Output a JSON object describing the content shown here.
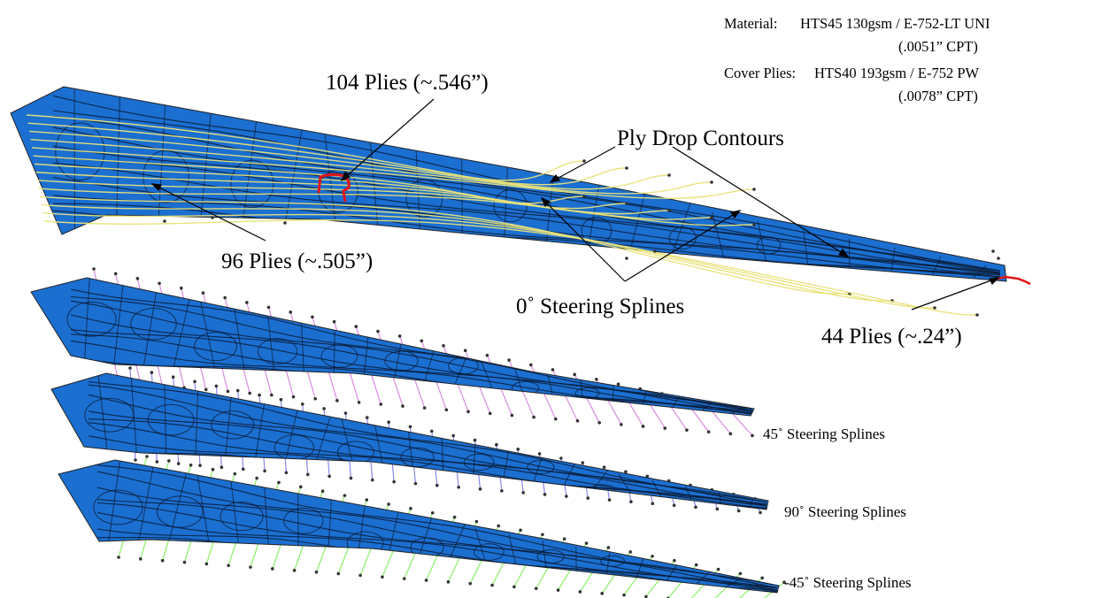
{
  "material": {
    "line1_label": "Material:",
    "line1_value": "HTS45 130gsm / E-752-LT UNI",
    "line2_value": "(.0051” CPT)",
    "line3_label": "Cover Plies:",
    "line3_value": "HTS40 193gsm / E-752 PW",
    "line4_value": "(.0078” CPT)"
  },
  "callouts": {
    "root_peak": "104 Plies  (~.546”)",
    "root_base": "96 Plies  (~.505”)",
    "tip": "44 Plies  (~.24”)",
    "ply_drop": "Ply Drop Contours",
    "steer_0": "0˚  Steering Splines"
  },
  "layers": [
    {
      "label": "45˚  Steering Splines",
      "spline_color": "#d98be0"
    },
    {
      "label": "90˚  Steering Splines",
      "spline_color": "#8888ee"
    },
    {
      "label": "-45˚  Steering Splines",
      "spline_color": "#88ee66"
    }
  ],
  "colors": {
    "skin": "#1b6fd1",
    "contour": "#0a1a33",
    "ply_drop_spline": "#e9e27a",
    "thick_region": "#e01515"
  }
}
